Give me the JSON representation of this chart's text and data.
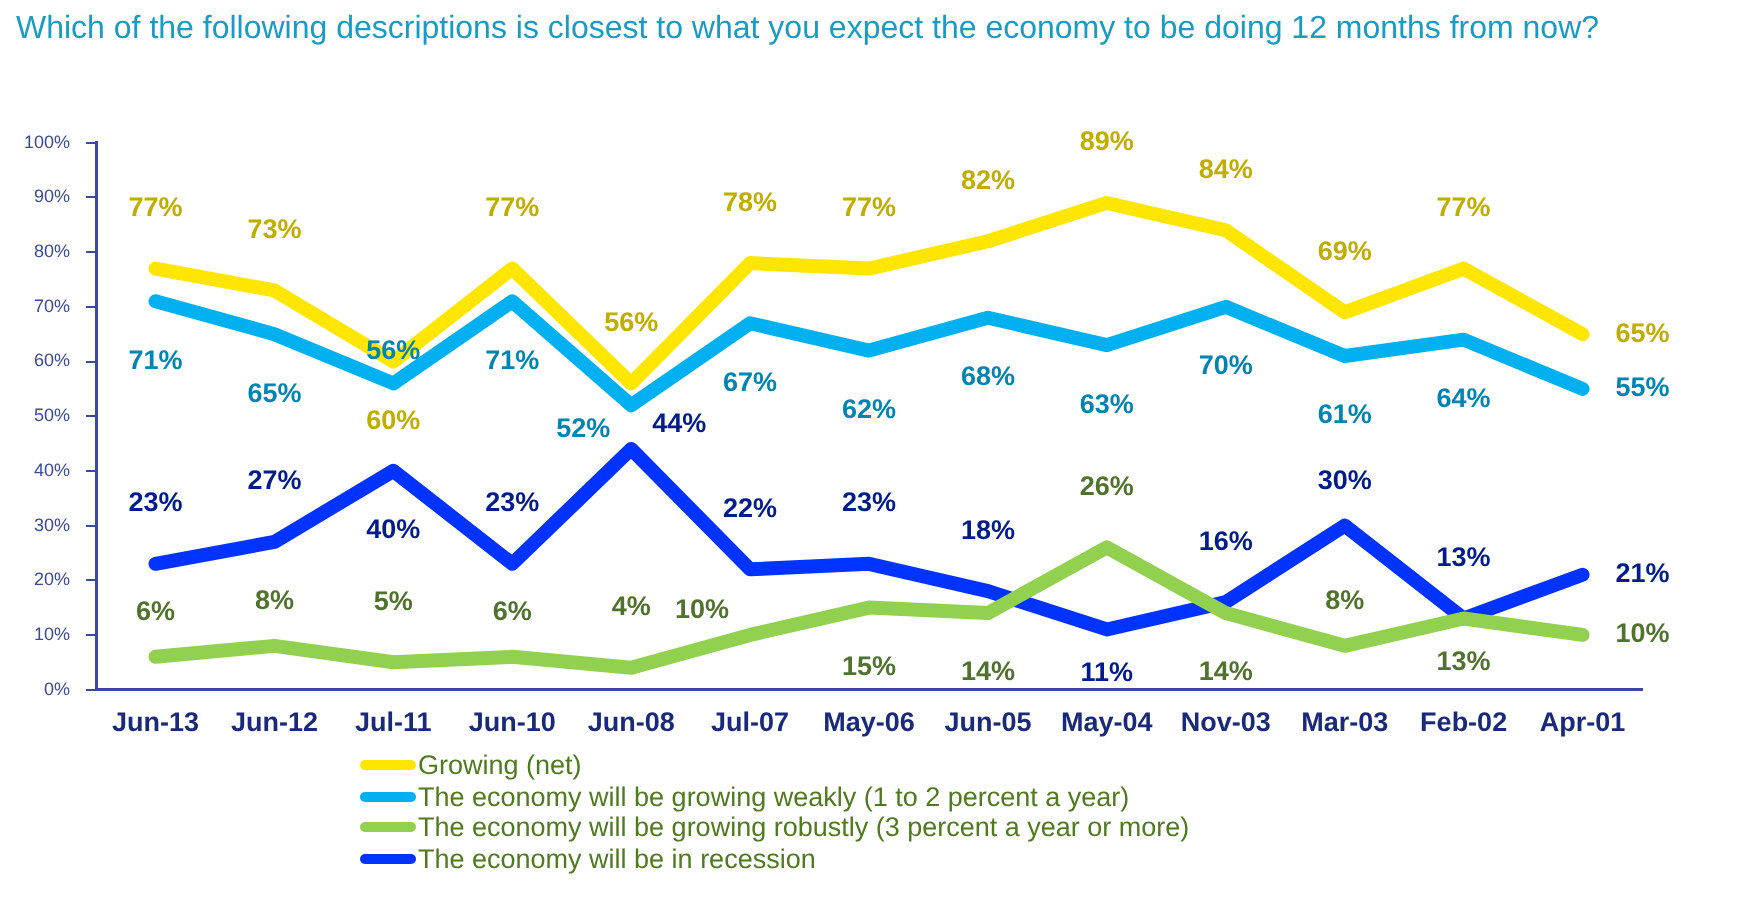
{
  "chart_data": {
    "type": "line",
    "title": "Which of the following descriptions is closest to what you expect the economy to be doing 12 months from now?",
    "categories": [
      "Jun-13",
      "Jun-12",
      "Jul-11",
      "Jun-10",
      "Jun-08",
      "Jul-07",
      "May-06",
      "Jun-05",
      "May-04",
      "Nov-03",
      "Mar-03",
      "Feb-02",
      "Apr-01"
    ],
    "series": [
      {
        "name": "Growing (net)",
        "color": "#ffe600",
        "values": [
          77,
          73,
          60,
          77,
          56,
          78,
          77,
          82,
          89,
          84,
          69,
          77,
          65
        ],
        "value_labels": [
          "77%",
          "73%",
          "60%",
          "77%",
          "56%",
          "78%",
          "77%",
          "82%",
          "89%",
          "84%",
          "69%",
          "77%",
          "65%"
        ]
      },
      {
        "name": "The economy will be growing weakly (1 to 2 percent a year)",
        "color": "#00b0f0",
        "values": [
          71,
          65,
          56,
          71,
          52,
          67,
          62,
          68,
          63,
          70,
          61,
          64,
          55
        ],
        "value_labels": [
          "71%",
          "65%",
          "56%",
          "71%",
          "52%",
          "67%",
          "62%",
          "68%",
          "63%",
          "70%",
          "61%",
          "64%",
          "55%"
        ]
      },
      {
        "name": "The economy will be growing robustly (3 percent a year or more)",
        "color": "#92d050",
        "values": [
          6,
          8,
          5,
          6,
          4,
          10,
          15,
          14,
          26,
          14,
          8,
          13,
          10
        ],
        "value_labels": [
          "6%",
          "8%",
          "5%",
          "6%",
          "4%",
          "10%",
          "15%",
          "14%",
          "26%",
          "14%",
          "8%",
          "13%",
          "10%"
        ]
      },
      {
        "name": "The economy will be in recession",
        "color": "#0033ff",
        "values": [
          23,
          27,
          40,
          23,
          44,
          22,
          23,
          18,
          11,
          16,
          30,
          13,
          21
        ],
        "value_labels": [
          "23%",
          "27%",
          "40%",
          "23%",
          "44%",
          "22%",
          "23%",
          "18%",
          "11%",
          "16%",
          "30%",
          "13%",
          "21%"
        ]
      }
    ],
    "ylim": [
      0,
      100
    ],
    "yticks": [
      {
        "value": 0,
        "label": "0%"
      },
      {
        "value": 10,
        "label": "10%"
      },
      {
        "value": 20,
        "label": "20%"
      },
      {
        "value": 30,
        "label": "30%"
      },
      {
        "value": 40,
        "label": "40%"
      },
      {
        "value": 50,
        "label": "50%"
      },
      {
        "value": 60,
        "label": "60%"
      },
      {
        "value": 70,
        "label": "70%"
      },
      {
        "value": 80,
        "label": "80%"
      },
      {
        "value": 90,
        "label": "90%"
      },
      {
        "value": 100,
        "label": "100%"
      }
    ],
    "grid": false,
    "legend": "bottom",
    "marker": "none",
    "line_style": "solid"
  }
}
